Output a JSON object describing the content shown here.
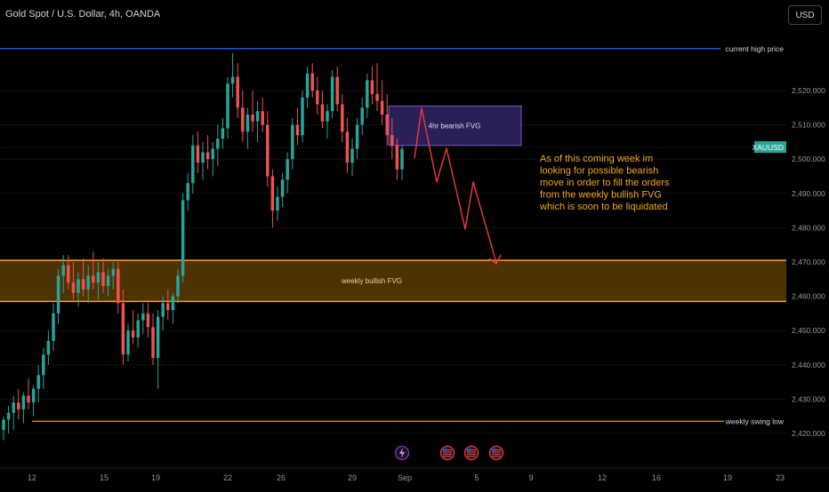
{
  "header": {
    "title": "Gold Spot / U.S. Dollar, 4h, OANDA",
    "currency_label": "USD"
  },
  "colors": {
    "background": "#000000",
    "up": "#26a69a",
    "down": "#ef5350",
    "blue_line": "#2962ff",
    "orange": "#f5a623",
    "fvg_weekly_fill": "#5a3b06",
    "fvg_4h_fill": "#2a1f57",
    "fvg_4h_border": "#7e57c2",
    "arrow": "#f23645",
    "text": "#d1d4dc",
    "axis_text": "#9598a1",
    "price_tag": "#26a69a"
  },
  "annotations": {
    "current_high_label": "current high price",
    "current_high_value": "2,532.239",
    "swing_low_label": "weekly swing low",
    "swing_low_value": "2,423.541",
    "symbol_tag": "XAUUSD",
    "last_price": "2,503.400",
    "weekly_fvg_label": "weekly bullish FVG",
    "h4_fvg_label": "4hr bearish FVG",
    "note_lines": [
      "As of this coming week im",
      "looking for possible bearish",
      "move in order to fill the orders",
      "from the weekly bullish FVG",
      "which is soon to be liquidated"
    ],
    "event_icons": [
      "lightning-icon",
      "us-flag-icon",
      "us-flag-icon",
      "us-flag-icon"
    ]
  },
  "chart_data": {
    "type": "candlestick",
    "symbol": "XAUUSD",
    "timeframe": "4h",
    "ylim": [
      2417,
      2545
    ],
    "y_ticks": [
      2420,
      2430,
      2440,
      2450,
      2460,
      2470,
      2480,
      2490,
      2500,
      2510,
      2520
    ],
    "y_tick_labels": [
      "2,420.000",
      "2,430.000",
      "2,440.000",
      "2,450.000",
      "2,460.000",
      "2,470.000",
      "2,480.000",
      "2,490.000",
      "2,500.000",
      "2,510.000",
      "2,520.000"
    ],
    "x_tick_labels": [
      "12",
      "15",
      "19",
      "22",
      "26",
      "29",
      "Sep",
      "5",
      "9",
      "12",
      "16",
      "19",
      "23"
    ],
    "levels": {
      "current_high": 2532.239,
      "swing_low": 2423.541,
      "weekly_fvg": [
        2458.5,
        2470.5
      ],
      "h4_fvg": [
        2504,
        2515.5
      ]
    },
    "candles": [
      {
        "o": 2421,
        "h": 2425,
        "l": 2418,
        "c": 2424
      },
      {
        "o": 2424,
        "h": 2428,
        "l": 2420,
        "c": 2426
      },
      {
        "o": 2426,
        "h": 2431,
        "l": 2421,
        "c": 2429
      },
      {
        "o": 2429,
        "h": 2433,
        "l": 2424,
        "c": 2427
      },
      {
        "o": 2427,
        "h": 2432,
        "l": 2423,
        "c": 2431
      },
      {
        "o": 2431,
        "h": 2436,
        "l": 2427,
        "c": 2429
      },
      {
        "o": 2429,
        "h": 2434,
        "l": 2425,
        "c": 2433
      },
      {
        "o": 2433,
        "h": 2440,
        "l": 2429,
        "c": 2437
      },
      {
        "o": 2437,
        "h": 2445,
        "l": 2433,
        "c": 2443
      },
      {
        "o": 2443,
        "h": 2450,
        "l": 2440,
        "c": 2447
      },
      {
        "o": 2447,
        "h": 2458,
        "l": 2444,
        "c": 2455
      },
      {
        "o": 2455,
        "h": 2468,
        "l": 2452,
        "c": 2466
      },
      {
        "o": 2466,
        "h": 2472,
        "l": 2461,
        "c": 2469
      },
      {
        "o": 2469,
        "h": 2472,
        "l": 2462,
        "c": 2464
      },
      {
        "o": 2464,
        "h": 2470,
        "l": 2459,
        "c": 2461
      },
      {
        "o": 2461,
        "h": 2467,
        "l": 2457,
        "c": 2465
      },
      {
        "o": 2465,
        "h": 2471,
        "l": 2460,
        "c": 2462
      },
      {
        "o": 2462,
        "h": 2469,
        "l": 2458,
        "c": 2466
      },
      {
        "o": 2466,
        "h": 2473,
        "l": 2462,
        "c": 2464
      },
      {
        "o": 2464,
        "h": 2470,
        "l": 2459,
        "c": 2467
      },
      {
        "o": 2467,
        "h": 2471,
        "l": 2461,
        "c": 2463
      },
      {
        "o": 2463,
        "h": 2468,
        "l": 2460,
        "c": 2466
      },
      {
        "o": 2466,
        "h": 2470,
        "l": 2462,
        "c": 2468
      },
      {
        "o": 2468,
        "h": 2470,
        "l": 2455,
        "c": 2458
      },
      {
        "o": 2458,
        "h": 2462,
        "l": 2440,
        "c": 2443
      },
      {
        "o": 2443,
        "h": 2452,
        "l": 2441,
        "c": 2450
      },
      {
        "o": 2450,
        "h": 2456,
        "l": 2446,
        "c": 2448
      },
      {
        "o": 2448,
        "h": 2455,
        "l": 2445,
        "c": 2453
      },
      {
        "o": 2453,
        "h": 2458,
        "l": 2449,
        "c": 2455
      },
      {
        "o": 2455,
        "h": 2458,
        "l": 2448,
        "c": 2451
      },
      {
        "o": 2451,
        "h": 2455,
        "l": 2440,
        "c": 2442
      },
      {
        "o": 2442,
        "h": 2456,
        "l": 2433,
        "c": 2454
      },
      {
        "o": 2454,
        "h": 2460,
        "l": 2450,
        "c": 2458
      },
      {
        "o": 2458,
        "h": 2462,
        "l": 2453,
        "c": 2456
      },
      {
        "o": 2456,
        "h": 2461,
        "l": 2452,
        "c": 2460
      },
      {
        "o": 2460,
        "h": 2468,
        "l": 2458,
        "c": 2466
      },
      {
        "o": 2466,
        "h": 2490,
        "l": 2464,
        "c": 2488
      },
      {
        "o": 2488,
        "h": 2496,
        "l": 2485,
        "c": 2493
      },
      {
        "o": 2493,
        "h": 2507,
        "l": 2490,
        "c": 2504
      },
      {
        "o": 2504,
        "h": 2508,
        "l": 2496,
        "c": 2499
      },
      {
        "o": 2499,
        "h": 2505,
        "l": 2494,
        "c": 2502
      },
      {
        "o": 2502,
        "h": 2507,
        "l": 2497,
        "c": 2500
      },
      {
        "o": 2500,
        "h": 2505,
        "l": 2495,
        "c": 2503
      },
      {
        "o": 2503,
        "h": 2510,
        "l": 2498,
        "c": 2506
      },
      {
        "o": 2506,
        "h": 2512,
        "l": 2503,
        "c": 2509
      },
      {
        "o": 2509,
        "h": 2524,
        "l": 2506,
        "c": 2522
      },
      {
        "o": 2522,
        "h": 2531,
        "l": 2518,
        "c": 2524
      },
      {
        "o": 2524,
        "h": 2528,
        "l": 2512,
        "c": 2515
      },
      {
        "o": 2515,
        "h": 2520,
        "l": 2505,
        "c": 2508
      },
      {
        "o": 2508,
        "h": 2515,
        "l": 2503,
        "c": 2513
      },
      {
        "o": 2513,
        "h": 2520,
        "l": 2508,
        "c": 2511
      },
      {
        "o": 2511,
        "h": 2517,
        "l": 2505,
        "c": 2514
      },
      {
        "o": 2514,
        "h": 2518,
        "l": 2508,
        "c": 2510
      },
      {
        "o": 2510,
        "h": 2514,
        "l": 2492,
        "c": 2495
      },
      {
        "o": 2495,
        "h": 2497,
        "l": 2480,
        "c": 2485
      },
      {
        "o": 2485,
        "h": 2492,
        "l": 2482,
        "c": 2489
      },
      {
        "o": 2489,
        "h": 2496,
        "l": 2486,
        "c": 2494
      },
      {
        "o": 2494,
        "h": 2502,
        "l": 2490,
        "c": 2500
      },
      {
        "o": 2500,
        "h": 2512,
        "l": 2497,
        "c": 2510
      },
      {
        "o": 2510,
        "h": 2515,
        "l": 2504,
        "c": 2507
      },
      {
        "o": 2507,
        "h": 2520,
        "l": 2505,
        "c": 2518
      },
      {
        "o": 2518,
        "h": 2527,
        "l": 2515,
        "c": 2525
      },
      {
        "o": 2525,
        "h": 2528,
        "l": 2518,
        "c": 2520
      },
      {
        "o": 2520,
        "h": 2524,
        "l": 2513,
        "c": 2516
      },
      {
        "o": 2516,
        "h": 2520,
        "l": 2509,
        "c": 2511
      },
      {
        "o": 2511,
        "h": 2516,
        "l": 2506,
        "c": 2514
      },
      {
        "o": 2514,
        "h": 2526,
        "l": 2512,
        "c": 2524
      },
      {
        "o": 2524,
        "h": 2527,
        "l": 2514,
        "c": 2516
      },
      {
        "o": 2516,
        "h": 2519,
        "l": 2505,
        "c": 2508
      },
      {
        "o": 2508,
        "h": 2512,
        "l": 2496,
        "c": 2499
      },
      {
        "o": 2499,
        "h": 2506,
        "l": 2495,
        "c": 2503
      },
      {
        "o": 2503,
        "h": 2512,
        "l": 2500,
        "c": 2510
      },
      {
        "o": 2510,
        "h": 2518,
        "l": 2507,
        "c": 2515
      },
      {
        "o": 2515,
        "h": 2525,
        "l": 2512,
        "c": 2523
      },
      {
        "o": 2523,
        "h": 2527,
        "l": 2516,
        "c": 2519
      },
      {
        "o": 2519,
        "h": 2528,
        "l": 2514,
        "c": 2517
      },
      {
        "o": 2517,
        "h": 2523,
        "l": 2510,
        "c": 2513
      },
      {
        "o": 2513,
        "h": 2519,
        "l": 2504,
        "c": 2507
      },
      {
        "o": 2507,
        "h": 2512,
        "l": 2500,
        "c": 2504
      },
      {
        "o": 2504,
        "h": 2506,
        "l": 2494,
        "c": 2497
      },
      {
        "o": 2497,
        "h": 2504,
        "l": 2494,
        "c": 2503
      }
    ]
  }
}
